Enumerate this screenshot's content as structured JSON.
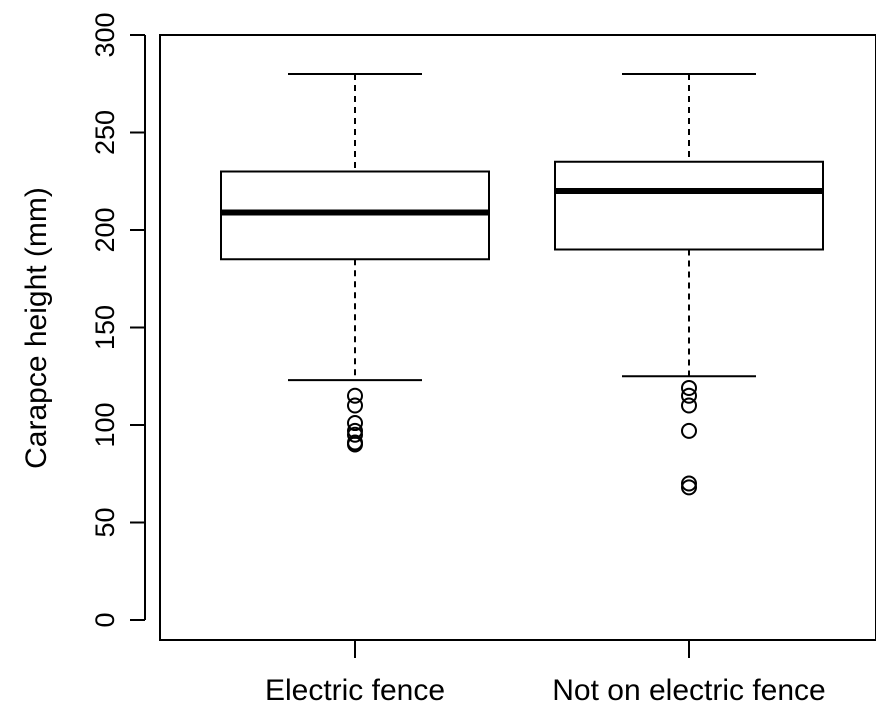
{
  "chart_data": {
    "type": "box",
    "title": "",
    "xlabel": "",
    "ylabel": "Carapce height (mm)",
    "ylim": [
      0,
      300
    ],
    "yticks": [
      0,
      50,
      100,
      150,
      200,
      250,
      300
    ],
    "grid": false,
    "categories": [
      "Electric fence",
      "Not on electric fence"
    ],
    "boxes": [
      {
        "category": "Electric fence",
        "whisker_low": 123,
        "q1": 185,
        "median": 209,
        "q3": 230,
        "whisker_high": 280,
        "outliers": [
          115,
          110,
          101,
          97,
          95,
          91,
          90
        ]
      },
      {
        "category": "Not on electric fence",
        "whisker_low": 125,
        "q1": 190,
        "median": 220,
        "q3": 235,
        "whisker_high": 280,
        "outliers": [
          119,
          115,
          110,
          97,
          70,
          68
        ]
      }
    ],
    "colors": {
      "stroke": "#000000",
      "box_fill": "#ffffff",
      "background": "#ffffff"
    }
  }
}
